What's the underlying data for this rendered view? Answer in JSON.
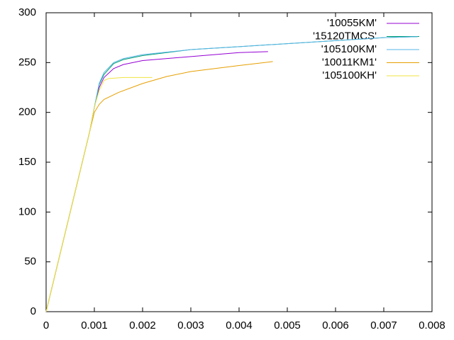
{
  "chart_data": {
    "type": "line",
    "xlim": [
      0,
      0.008
    ],
    "xticks": [
      0,
      0.001,
      0.002,
      0.003,
      0.004,
      0.005,
      0.006,
      0.007,
      0.008
    ],
    "ylim": [
      0,
      300
    ],
    "yticks": [
      0,
      50,
      100,
      150,
      200,
      250,
      300
    ],
    "grid": false,
    "legend": "top-right",
    "series": [
      {
        "name": "'10055KM'",
        "color": "#9400d3",
        "x": [
          0,
          0.0002,
          0.0005,
          0.0009,
          0.001,
          0.0011,
          0.0012,
          0.0014,
          0.0016,
          0.002,
          0.003,
          0.004,
          0.0046
        ],
        "values": [
          0,
          40,
          100,
          180,
          205,
          225,
          235,
          244,
          248,
          252,
          256,
          260,
          261
        ]
      },
      {
        "name": "'15120TMCS'",
        "color": "#009e73",
        "x": [
          0,
          0.0002,
          0.0005,
          0.0009,
          0.001,
          0.0011,
          0.0012,
          0.0014,
          0.0016,
          0.002,
          0.003,
          0.004,
          0.005,
          0.006,
          0.007,
          0.0077
        ],
        "values": [
          0,
          40,
          100,
          180,
          205,
          228,
          238,
          249,
          253,
          257,
          263,
          266,
          269,
          272,
          275,
          276
        ]
      },
      {
        "name": "'105100KM'",
        "color": "#56b4e9",
        "x": [
          0,
          0.0002,
          0.0005,
          0.0009,
          0.001,
          0.0011,
          0.0012,
          0.0014,
          0.0016,
          0.002,
          0.003,
          0.004,
          0.005,
          0.006,
          0.007,
          0.0077
        ],
        "values": [
          0,
          40,
          100,
          180,
          205,
          229,
          240,
          250,
          254,
          258,
          263,
          266,
          269,
          272,
          275,
          276
        ]
      },
      {
        "name": "'10011KM1'",
        "color": "#e69f00",
        "x": [
          0,
          0.0002,
          0.0005,
          0.0009,
          0.001,
          0.0011,
          0.0012,
          0.0015,
          0.002,
          0.0025,
          0.003,
          0.004,
          0.0047
        ],
        "values": [
          0,
          40,
          100,
          180,
          200,
          208,
          213,
          220,
          229,
          236,
          241,
          247,
          251
        ]
      },
      {
        "name": "'105100KH'",
        "color": "#f0e442",
        "x": [
          0,
          0.0002,
          0.0005,
          0.0009,
          0.001,
          0.0011,
          0.0012,
          0.0013,
          0.0016,
          0.0022
        ],
        "values": [
          0,
          40,
          100,
          180,
          205,
          222,
          232,
          234,
          235,
          235
        ]
      }
    ]
  }
}
